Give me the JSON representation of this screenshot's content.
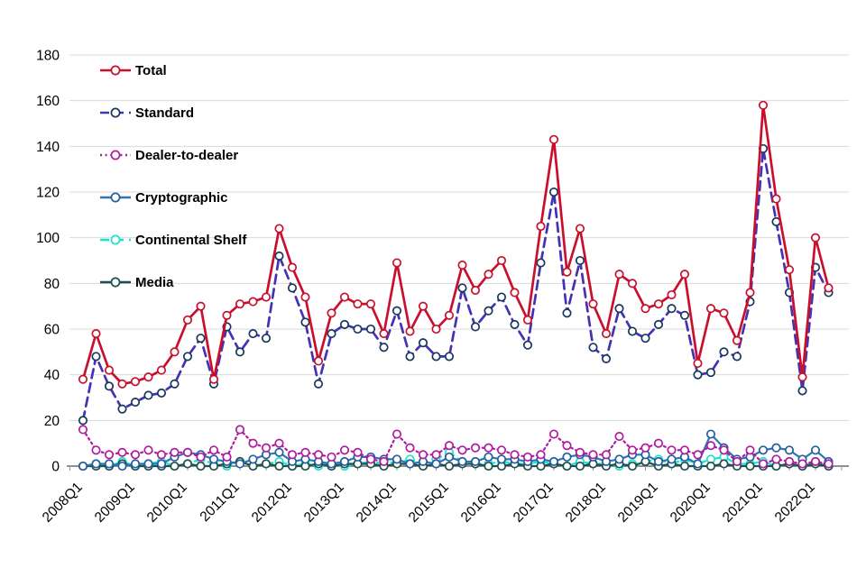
{
  "chart_data": {
    "type": "line",
    "title": "",
    "xlabel": "",
    "ylabel": "",
    "ylim": [
      0,
      180
    ],
    "y_ticks": [
      0,
      20,
      40,
      60,
      80,
      100,
      120,
      140,
      160,
      180
    ],
    "grid": "horizontal",
    "legend_position": "top-left-inside",
    "x_tick_labels": [
      "2008Q1",
      "2009Q1",
      "2010Q1",
      "2011Q1",
      "2012Q1",
      "2013Q1",
      "2014Q1",
      "2015Q1",
      "2016Q1",
      "2017Q1",
      "2018Q1",
      "2019Q1",
      "2020Q1",
      "2021Q1",
      "2022Q1"
    ],
    "categories": [
      "2008Q1",
      "2008Q2",
      "2008Q3",
      "2008Q4",
      "2009Q1",
      "2009Q2",
      "2009Q3",
      "2009Q4",
      "2010Q1",
      "2010Q2",
      "2010Q3",
      "2010Q4",
      "2011Q1",
      "2011Q2",
      "2011Q3",
      "2011Q4",
      "2012Q1",
      "2012Q2",
      "2012Q3",
      "2012Q4",
      "2013Q1",
      "2013Q2",
      "2013Q3",
      "2013Q4",
      "2014Q1",
      "2014Q2",
      "2014Q3",
      "2014Q4",
      "2015Q1",
      "2015Q2",
      "2015Q3",
      "2015Q4",
      "2016Q1",
      "2016Q2",
      "2016Q3",
      "2016Q4",
      "2017Q1",
      "2017Q2",
      "2017Q3",
      "2017Q4",
      "2018Q1",
      "2018Q2",
      "2018Q3",
      "2018Q4",
      "2019Q1",
      "2019Q2",
      "2019Q3",
      "2019Q4",
      "2020Q1",
      "2020Q2",
      "2020Q3",
      "2020Q4",
      "2021Q1",
      "2021Q2",
      "2021Q3",
      "2021Q4",
      "2022Q1",
      "2022Q2"
    ],
    "series": [
      {
        "name": "Total",
        "slug": "total",
        "color": "#C8102E",
        "marker_color": "#C8102E",
        "dash": "solid",
        "values": [
          38,
          58,
          42,
          36,
          37,
          39,
          42,
          50,
          64,
          70,
          38,
          66,
          71,
          72,
          74,
          104,
          87,
          74,
          46,
          67,
          74,
          71,
          71,
          58,
          89,
          59,
          70,
          60,
          66,
          88,
          77,
          84,
          90,
          76,
          64,
          105,
          143,
          85,
          104,
          71,
          58,
          84,
          80,
          69,
          71,
          75,
          84,
          45,
          69,
          67,
          55,
          76,
          158,
          117,
          86,
          39,
          100,
          78
        ]
      },
      {
        "name": "Standard",
        "slug": "standard",
        "color": "#4432B4",
        "marker_color": "#17375E",
        "dash": "dashed",
        "values": [
          20,
          48,
          35,
          25,
          28,
          31,
          32,
          36,
          48,
          56,
          36,
          61,
          50,
          58,
          56,
          92,
          78,
          63,
          36,
          58,
          62,
          60,
          60,
          52,
          68,
          48,
          54,
          48,
          48,
          78,
          61,
          68,
          74,
          62,
          53,
          89,
          120,
          67,
          90,
          52,
          47,
          69,
          59,
          56,
          62,
          69,
          66,
          40,
          41,
          50,
          48,
          72,
          139,
          107,
          76,
          33,
          87,
          76
        ]
      },
      {
        "name": "Dealer-to-dealer",
        "slug": "dealer-to-dealer",
        "color": "#B01BA0",
        "marker_color": "#B01BA0",
        "dash": "dotted",
        "values": [
          16,
          7,
          5,
          6,
          5,
          7,
          5,
          6,
          6,
          4,
          7,
          4,
          16,
          10,
          8,
          10,
          5,
          6,
          5,
          4,
          7,
          6,
          3,
          2,
          14,
          8,
          5,
          5,
          9,
          7,
          8,
          8,
          7,
          5,
          4,
          5,
          14,
          9,
          6,
          5,
          5,
          13,
          7,
          8,
          10,
          7,
          7,
          5,
          9,
          7,
          2,
          7,
          1,
          3,
          2,
          1,
          2,
          1
        ]
      },
      {
        "name": "Cryptographic",
        "slug": "cryptographic",
        "color": "#2E75B6",
        "marker_color": "#255E9E",
        "dash": "solid",
        "values": [
          0,
          1,
          1,
          0,
          1,
          1,
          1,
          4,
          6,
          5,
          3,
          2,
          1,
          3,
          5,
          6,
          2,
          3,
          2,
          1,
          2,
          4,
          4,
          3,
          3,
          1,
          2,
          1,
          4,
          2,
          2,
          4,
          3,
          3,
          2,
          3,
          2,
          4,
          5,
          4,
          2,
          3,
          5,
          5,
          2,
          3,
          4,
          1,
          14,
          8,
          3,
          4,
          7,
          8,
          7,
          3,
          7,
          2
        ]
      },
      {
        "name": "Continental Shelf",
        "slug": "continental-shelf",
        "color": "#18E3CE",
        "marker_color": "#18E3CE",
        "dash": "dashed",
        "values": [
          0,
          1,
          0,
          2,
          0,
          1,
          2,
          0,
          1,
          3,
          1,
          0,
          2,
          0,
          1,
          2,
          0,
          1,
          0,
          1,
          0,
          1,
          2,
          1,
          2,
          3,
          1,
          3,
          6,
          2,
          1,
          1,
          2,
          1,
          1,
          2,
          1,
          0,
          2,
          1,
          1,
          0,
          1,
          2,
          3,
          1,
          3,
          1,
          3,
          4,
          1,
          1,
          2,
          0,
          1,
          0,
          2,
          0
        ]
      },
      {
        "name": "Media",
        "slug": "media",
        "color": "#1F4E4E",
        "marker_color": "#1F4E4E",
        "dash": "solid",
        "values": [
          0,
          0,
          0,
          1,
          0,
          0,
          0,
          0,
          1,
          0,
          0,
          1,
          2,
          0,
          1,
          0,
          0,
          0,
          1,
          0,
          1,
          1,
          1,
          0,
          1,
          1,
          0,
          1,
          0,
          1,
          1,
          0,
          0,
          1,
          0,
          0,
          1,
          0,
          0,
          1,
          0,
          1,
          0,
          2,
          0,
          1,
          0,
          0,
          0,
          1,
          0,
          0,
          0,
          0,
          1,
          0,
          1,
          0
        ]
      }
    ]
  }
}
